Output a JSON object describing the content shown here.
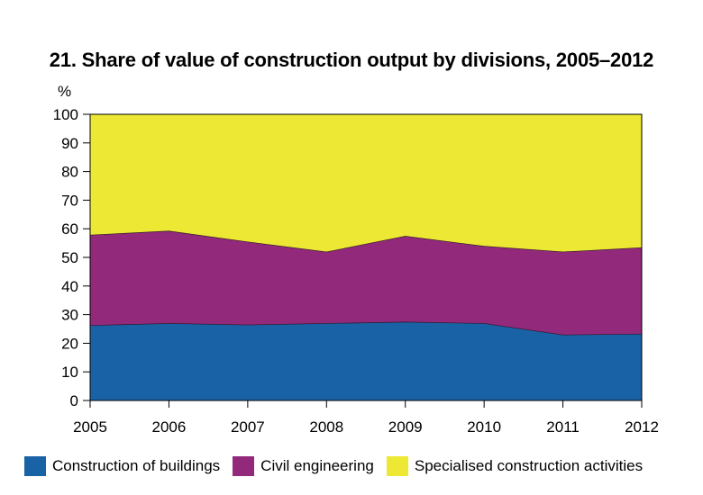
{
  "chart_data": {
    "type": "area",
    "stacked": true,
    "title": "21. Share of value of construction output by divisions, 2005–2012",
    "ylabel": "%",
    "xlabel": "",
    "ylim": [
      0,
      100
    ],
    "yticks": [
      "0",
      "10",
      "20",
      "30",
      "40",
      "50",
      "60",
      "70",
      "80",
      "90",
      "100"
    ],
    "categories": [
      "2005",
      "2006",
      "2007",
      "2008",
      "2009",
      "2010",
      "2011",
      "2012"
    ],
    "series": [
      {
        "name": "Construction of buildings",
        "color": "#1a62a6",
        "values": [
          26.3,
          27.0,
          26.5,
          27.0,
          27.5,
          27.0,
          23.0,
          23.3
        ]
      },
      {
        "name": "Civil engineering",
        "color": "#93297b",
        "values": [
          31.6,
          32.3,
          29.0,
          25.0,
          30.0,
          27.0,
          29.0,
          30.2
        ]
      },
      {
        "name": "Specialised construction activities",
        "color": "#ede833",
        "values": [
          42.1,
          40.7,
          44.5,
          48.0,
          42.5,
          46.0,
          48.0,
          46.5
        ]
      }
    ],
    "legend_position": "bottom",
    "grid": false
  }
}
